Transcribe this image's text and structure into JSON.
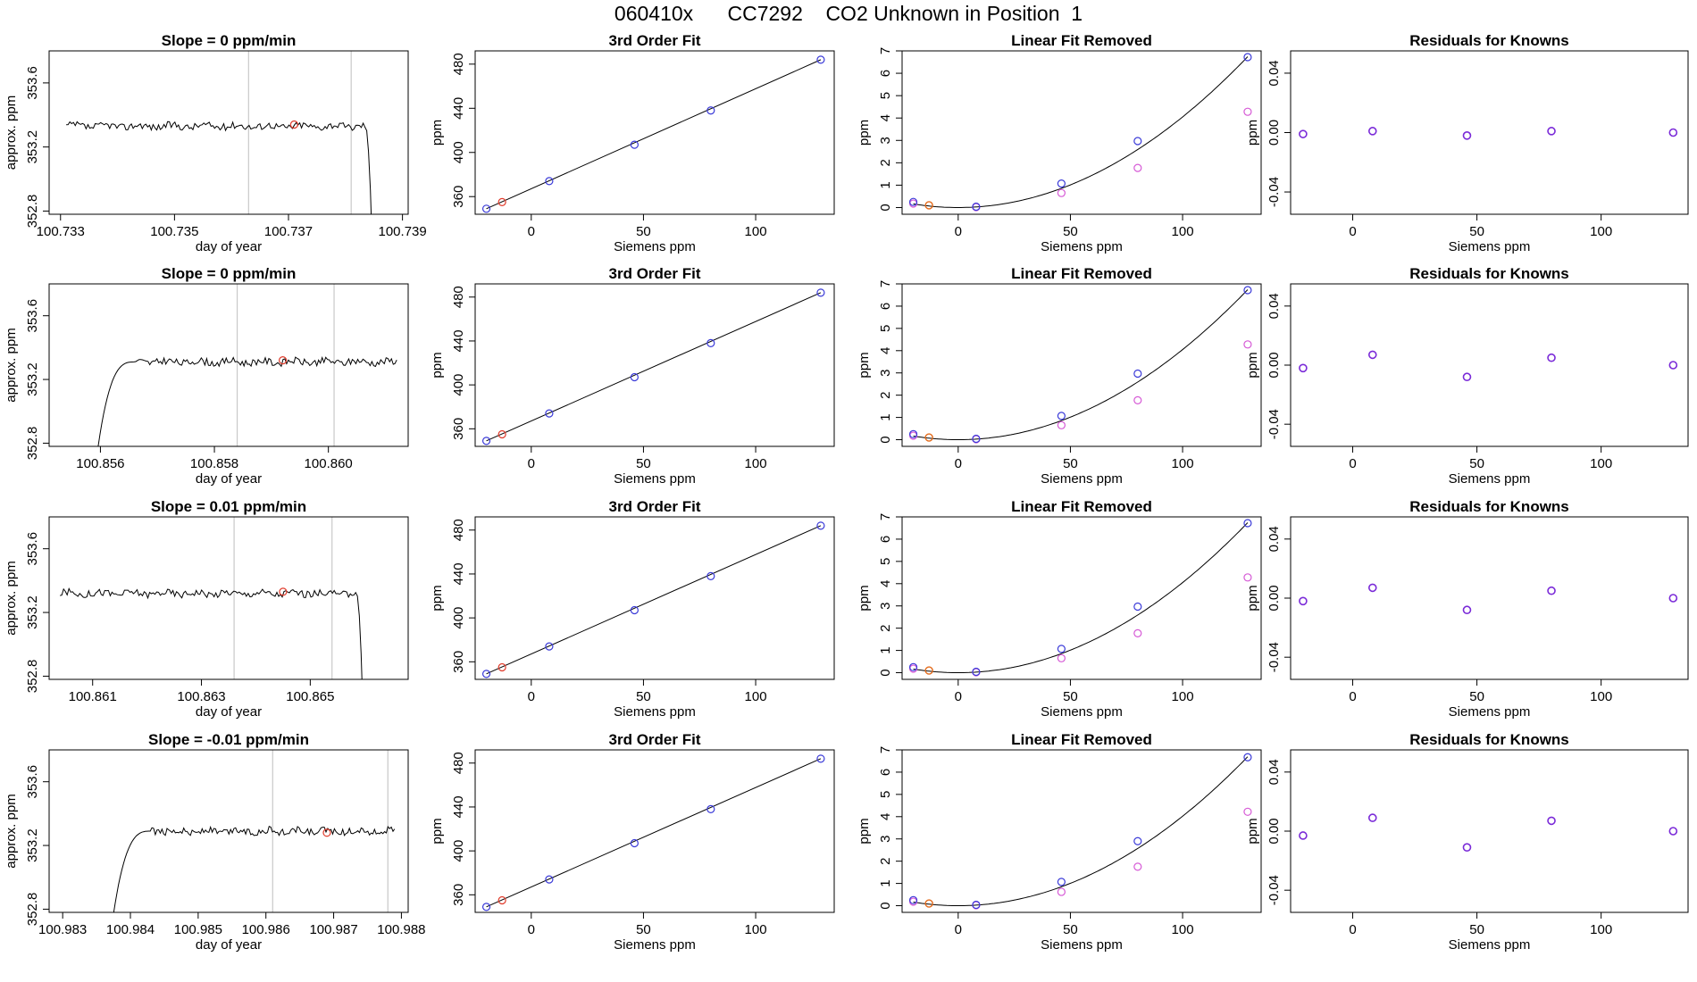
{
  "figure": {
    "title": "060410x      CC7292    CO2 Unknown in Position  1"
  },
  "colors": {
    "frame": "#000000",
    "trace": "#000000",
    "fit_line": "#000000",
    "vline": "#c8c8c8",
    "unknown": "#e03a2a",
    "known": "#3a3ad8",
    "removed": "#d65ad6",
    "residual": "#7a2ad8",
    "orange": "#e36a1a"
  },
  "chart_data": [
    {
      "type": "line",
      "row": 1,
      "col": 1,
      "panel": "timeseries",
      "title": "Slope =  0  ppm/min",
      "xlabel": "day of year",
      "ylabel": "approx. ppm",
      "xlim": [
        100.7328,
        100.7391
      ],
      "ylim": [
        352.78,
        353.8
      ],
      "xticks": [
        100.733,
        100.735,
        100.737,
        100.739
      ],
      "xtick_labels": [
        "100.733",
        "100.735",
        "100.737",
        "100.739"
      ],
      "yticks": [
        352.8,
        353.2,
        353.6
      ],
      "ytick_labels": [
        "352.8",
        "353.2",
        "353.6"
      ],
      "trace_start": 100.7331,
      "trace_end": 100.7385,
      "trace_level": 353.33,
      "rise_end": null,
      "drop_start": 100.73835,
      "vlines": [
        100.7363,
        100.7381
      ],
      "marker": {
        "x": 100.7371,
        "y": 353.34
      }
    },
    {
      "type": "line",
      "row": 1,
      "col": 2,
      "panel": "fit",
      "title": "3rd Order Fit",
      "xlabel": "Siemens ppm",
      "ylabel": "ppm",
      "xlim": [
        -25,
        135
      ],
      "ylim": [
        344,
        492
      ],
      "xticks": [
        0,
        50,
        100
      ],
      "xtick_labels": [
        "0",
        "50",
        "100"
      ],
      "yticks": [
        360,
        400,
        440,
        480
      ],
      "ytick_labels": [
        "360",
        "400",
        "440",
        "480"
      ],
      "knowns": [
        {
          "x": -20,
          "y": 349
        },
        {
          "x": 8,
          "y": 374
        },
        {
          "x": 46,
          "y": 407
        },
        {
          "x": 80,
          "y": 438
        },
        {
          "x": 129,
          "y": 484
        }
      ],
      "unknown": {
        "x": -13,
        "y": 355
      }
    },
    {
      "type": "scatter",
      "row": 1,
      "col": 3,
      "panel": "linear_removed",
      "title": "Linear Fit Removed",
      "xlabel": "Siemens ppm",
      "ylabel": "ppm",
      "xlim": [
        -25,
        135
      ],
      "ylim": [
        -0.3,
        7.0
      ],
      "xticks": [
        0,
        50,
        100
      ],
      "xtick_labels": [
        "0",
        "50",
        "100"
      ],
      "yticks": [
        0,
        1,
        2,
        3,
        4,
        5,
        6,
        7
      ],
      "ytick_labels": [
        "0",
        "1",
        "2",
        "3",
        "4",
        "5",
        "6",
        "7"
      ],
      "knowns": [
        {
          "x": -20,
          "y": 0.25
        },
        {
          "x": 8,
          "y": 0.04
        },
        {
          "x": 46,
          "y": 1.07
        },
        {
          "x": 80,
          "y": 2.97
        },
        {
          "x": 129,
          "y": 6.72
        }
      ],
      "removed": [
        {
          "x": -20,
          "y": 0.18
        },
        {
          "x": 8,
          "y": 0.02
        },
        {
          "x": 46,
          "y": 0.65
        },
        {
          "x": 80,
          "y": 1.77
        },
        {
          "x": 129,
          "y": 4.28
        }
      ],
      "unknown": {
        "x": -13,
        "y": 0.1
      },
      "curve_coeffs": [
        0.0,
        0.0,
        0.000405,
        0.0
      ]
    },
    {
      "type": "scatter",
      "row": 1,
      "col": 4,
      "panel": "residuals",
      "title": "Residuals for Knowns",
      "xlabel": "Siemens ppm",
      "ylabel": "ppm",
      "xlim": [
        -25,
        135
      ],
      "ylim": [
        -0.055,
        0.055
      ],
      "xticks": [
        0,
        50,
        100
      ],
      "xtick_labels": [
        "0",
        "50",
        "100"
      ],
      "yticks": [
        -0.04,
        0.0,
        0.04
      ],
      "ytick_labels": [
        "-0.04",
        "0.00",
        "0.04"
      ],
      "residuals": [
        {
          "x": -20,
          "y": -0.001
        },
        {
          "x": 8,
          "y": 0.001
        },
        {
          "x": 46,
          "y": -0.002
        },
        {
          "x": 80,
          "y": 0.001
        },
        {
          "x": 129,
          "y": 0.0
        }
      ]
    },
    {
      "type": "line",
      "row": 2,
      "col": 1,
      "panel": "timeseries",
      "title": "Slope =  0  ppm/min",
      "xlabel": "day of year",
      "ylabel": "approx. ppm",
      "xlim": [
        100.8551,
        100.8614
      ],
      "ylim": [
        352.78,
        353.8
      ],
      "xticks": [
        100.856,
        100.858,
        100.86
      ],
      "xtick_labels": [
        "100.856",
        "100.858",
        "100.860"
      ],
      "yticks": [
        352.8,
        353.2,
        353.6
      ],
      "ytick_labels": [
        "352.8",
        "353.2",
        "353.6"
      ],
      "trace_start": 100.8559,
      "trace_end": 100.8612,
      "trace_level": 353.31,
      "rise_end": 100.8566,
      "drop_start": null,
      "vlines": [
        100.8584,
        100.8601
      ],
      "marker": {
        "x": 100.8592,
        "y": 353.32
      }
    },
    {
      "type": "line",
      "row": 2,
      "col": 2,
      "panel": "fit",
      "title": "3rd Order Fit",
      "xlabel": "Siemens ppm",
      "ylabel": "ppm",
      "xlim": [
        -25,
        135
      ],
      "ylim": [
        344,
        492
      ],
      "xticks": [
        0,
        50,
        100
      ],
      "xtick_labels": [
        "0",
        "50",
        "100"
      ],
      "yticks": [
        360,
        400,
        440,
        480
      ],
      "ytick_labels": [
        "360",
        "400",
        "440",
        "480"
      ],
      "knowns": [
        {
          "x": -20,
          "y": 349
        },
        {
          "x": 8,
          "y": 374
        },
        {
          "x": 46,
          "y": 407
        },
        {
          "x": 80,
          "y": 438
        },
        {
          "x": 129,
          "y": 484
        }
      ],
      "unknown": {
        "x": -13,
        "y": 355
      }
    },
    {
      "type": "scatter",
      "row": 2,
      "col": 3,
      "panel": "linear_removed",
      "title": "Linear Fit Removed",
      "xlabel": "Siemens ppm",
      "ylabel": "ppm",
      "xlim": [
        -25,
        135
      ],
      "ylim": [
        -0.3,
        7.0
      ],
      "xticks": [
        0,
        50,
        100
      ],
      "xtick_labels": [
        "0",
        "50",
        "100"
      ],
      "yticks": [
        0,
        1,
        2,
        3,
        4,
        5,
        6,
        7
      ],
      "ytick_labels": [
        "0",
        "1",
        "2",
        "3",
        "4",
        "5",
        "6",
        "7"
      ],
      "knowns": [
        {
          "x": -20,
          "y": 0.25
        },
        {
          "x": 8,
          "y": 0.04
        },
        {
          "x": 46,
          "y": 1.07
        },
        {
          "x": 80,
          "y": 2.97
        },
        {
          "x": 129,
          "y": 6.72
        }
      ],
      "removed": [
        {
          "x": -20,
          "y": 0.18
        },
        {
          "x": 8,
          "y": 0.02
        },
        {
          "x": 46,
          "y": 0.65
        },
        {
          "x": 80,
          "y": 1.77
        },
        {
          "x": 129,
          "y": 4.28
        }
      ],
      "unknown": {
        "x": -13,
        "y": 0.1
      },
      "curve_coeffs": [
        0.0,
        0.0,
        0.000405,
        0.0
      ]
    },
    {
      "type": "scatter",
      "row": 2,
      "col": 4,
      "panel": "residuals",
      "title": "Residuals for Knowns",
      "xlabel": "Siemens ppm",
      "ylabel": "ppm",
      "xlim": [
        -25,
        135
      ],
      "ylim": [
        -0.055,
        0.055
      ],
      "xticks": [
        0,
        50,
        100
      ],
      "xtick_labels": [
        "0",
        "50",
        "100"
      ],
      "yticks": [
        -0.04,
        0.0,
        0.04
      ],
      "ytick_labels": [
        "-0.04",
        "0.00",
        "0.04"
      ],
      "residuals": [
        {
          "x": -20,
          "y": -0.002
        },
        {
          "x": 8,
          "y": 0.007
        },
        {
          "x": 46,
          "y": -0.008
        },
        {
          "x": 80,
          "y": 0.005
        },
        {
          "x": 129,
          "y": 0.0
        }
      ]
    },
    {
      "type": "line",
      "row": 3,
      "col": 1,
      "panel": "timeseries",
      "title": "Slope =  0.01  ppm/min",
      "xlabel": "day of year",
      "ylabel": "approx. ppm",
      "xlim": [
        100.8602,
        100.8668
      ],
      "ylim": [
        352.78,
        353.8
      ],
      "xticks": [
        100.861,
        100.863,
        100.865
      ],
      "xtick_labels": [
        "100.861",
        "100.863",
        "100.865"
      ],
      "yticks": [
        352.8,
        353.2,
        353.6
      ],
      "ytick_labels": [
        "352.8",
        "353.2",
        "353.6"
      ],
      "trace_start": 100.8604,
      "trace_end": 100.866,
      "trace_level": 353.32,
      "rise_end": null,
      "drop_start": 100.86585,
      "vlines": [
        100.8636,
        100.8654
      ],
      "marker": {
        "x": 100.8645,
        "y": 353.33
      }
    },
    {
      "type": "line",
      "row": 3,
      "col": 2,
      "panel": "fit",
      "title": "3rd Order Fit",
      "xlabel": "Siemens ppm",
      "ylabel": "ppm",
      "xlim": [
        -25,
        135
      ],
      "ylim": [
        344,
        492
      ],
      "xticks": [
        0,
        50,
        100
      ],
      "xtick_labels": [
        "0",
        "50",
        "100"
      ],
      "yticks": [
        360,
        400,
        440,
        480
      ],
      "ytick_labels": [
        "360",
        "400",
        "440",
        "480"
      ],
      "knowns": [
        {
          "x": -20,
          "y": 349
        },
        {
          "x": 8,
          "y": 374
        },
        {
          "x": 46,
          "y": 407
        },
        {
          "x": 80,
          "y": 438
        },
        {
          "x": 129,
          "y": 484
        }
      ],
      "unknown": {
        "x": -13,
        "y": 355
      }
    },
    {
      "type": "scatter",
      "row": 3,
      "col": 3,
      "panel": "linear_removed",
      "title": "Linear Fit Removed",
      "xlabel": "Siemens ppm",
      "ylabel": "ppm",
      "xlim": [
        -25,
        135
      ],
      "ylim": [
        -0.3,
        7.0
      ],
      "xticks": [
        0,
        50,
        100
      ],
      "xtick_labels": [
        "0",
        "50",
        "100"
      ],
      "yticks": [
        0,
        1,
        2,
        3,
        4,
        5,
        6,
        7
      ],
      "ytick_labels": [
        "0",
        "1",
        "2",
        "3",
        "4",
        "5",
        "6",
        "7"
      ],
      "knowns": [
        {
          "x": -20,
          "y": 0.25
        },
        {
          "x": 8,
          "y": 0.04
        },
        {
          "x": 46,
          "y": 1.07
        },
        {
          "x": 80,
          "y": 2.97
        },
        {
          "x": 129,
          "y": 6.72
        }
      ],
      "removed": [
        {
          "x": -20,
          "y": 0.18
        },
        {
          "x": 8,
          "y": 0.02
        },
        {
          "x": 46,
          "y": 0.65
        },
        {
          "x": 80,
          "y": 1.77
        },
        {
          "x": 129,
          "y": 4.28
        }
      ],
      "unknown": {
        "x": -13,
        "y": 0.1
      },
      "curve_coeffs": [
        0.0,
        0.0,
        0.000405,
        0.0
      ]
    },
    {
      "type": "scatter",
      "row": 3,
      "col": 4,
      "panel": "residuals",
      "title": "Residuals for Knowns",
      "xlabel": "Siemens ppm",
      "ylabel": "ppm",
      "xlim": [
        -25,
        135
      ],
      "ylim": [
        -0.055,
        0.055
      ],
      "xticks": [
        0,
        50,
        100
      ],
      "xtick_labels": [
        "0",
        "50",
        "100"
      ],
      "yticks": [
        -0.04,
        0.0,
        0.04
      ],
      "ytick_labels": [
        "-0.04",
        "0.00",
        "0.04"
      ],
      "residuals": [
        {
          "x": -20,
          "y": -0.002
        },
        {
          "x": 8,
          "y": 0.007
        },
        {
          "x": 46,
          "y": -0.008
        },
        {
          "x": 80,
          "y": 0.005
        },
        {
          "x": 129,
          "y": 0.0
        }
      ]
    },
    {
      "type": "line",
      "row": 4,
      "col": 1,
      "panel": "timeseries",
      "title": "Slope =  -0.01  ppm/min",
      "xlabel": "day of year",
      "ylabel": "approx. ppm",
      "xlim": [
        100.9828,
        100.9881
      ],
      "ylim": [
        352.78,
        353.8
      ],
      "xticks": [
        100.983,
        100.984,
        100.985,
        100.986,
        100.987,
        100.988
      ],
      "xtick_labels": [
        "100.983",
        "100.984",
        "100.985",
        "100.986",
        "100.987",
        "100.988"
      ],
      "yticks": [
        352.8,
        353.2,
        353.6
      ],
      "ytick_labels": [
        "352.8",
        "353.2",
        "353.6"
      ],
      "trace_start": 100.9837,
      "trace_end": 100.9879,
      "trace_level": 353.29,
      "rise_end": 100.9843,
      "drop_start": null,
      "vlines": [
        100.9861,
        100.9878
      ],
      "marker": {
        "x": 100.9869,
        "y": 353.28
      }
    },
    {
      "type": "line",
      "row": 4,
      "col": 2,
      "panel": "fit",
      "title": "3rd Order Fit",
      "xlabel": "Siemens ppm",
      "ylabel": "ppm",
      "xlim": [
        -25,
        135
      ],
      "ylim": [
        344,
        492
      ],
      "xticks": [
        0,
        50,
        100
      ],
      "xtick_labels": [
        "0",
        "50",
        "100"
      ],
      "yticks": [
        360,
        400,
        440,
        480
      ],
      "ytick_labels": [
        "360",
        "400",
        "440",
        "480"
      ],
      "knowns": [
        {
          "x": -20,
          "y": 349
        },
        {
          "x": 8,
          "y": 374
        },
        {
          "x": 46,
          "y": 407
        },
        {
          "x": 80,
          "y": 438
        },
        {
          "x": 129,
          "y": 484
        }
      ],
      "unknown": {
        "x": -13,
        "y": 355
      }
    },
    {
      "type": "scatter",
      "row": 4,
      "col": 3,
      "panel": "linear_removed",
      "title": "Linear Fit Removed",
      "xlabel": "Siemens ppm",
      "ylabel": "ppm",
      "xlim": [
        -25,
        135
      ],
      "ylim": [
        -0.3,
        7.0
      ],
      "xticks": [
        0,
        50,
        100
      ],
      "xtick_labels": [
        "0",
        "50",
        "100"
      ],
      "yticks": [
        0,
        1,
        2,
        3,
        4,
        5,
        6,
        7
      ],
      "ytick_labels": [
        "0",
        "1",
        "2",
        "3",
        "4",
        "5",
        "6",
        "7"
      ],
      "knowns": [
        {
          "x": -20,
          "y": 0.25
        },
        {
          "x": 8,
          "y": 0.04
        },
        {
          "x": 46,
          "y": 1.07
        },
        {
          "x": 80,
          "y": 2.9
        },
        {
          "x": 129,
          "y": 6.67
        }
      ],
      "removed": [
        {
          "x": -20,
          "y": 0.18
        },
        {
          "x": 8,
          "y": 0.02
        },
        {
          "x": 46,
          "y": 0.62
        },
        {
          "x": 80,
          "y": 1.75
        },
        {
          "x": 129,
          "y": 4.22
        }
      ],
      "unknown": {
        "x": -13,
        "y": 0.1
      },
      "curve_coeffs": [
        0.0,
        0.0,
        0.000402,
        0.0
      ]
    },
    {
      "type": "scatter",
      "row": 4,
      "col": 4,
      "panel": "residuals",
      "title": "Residuals for Knowns",
      "xlabel": "Siemens ppm",
      "ylabel": "ppm",
      "xlim": [
        -25,
        135
      ],
      "ylim": [
        -0.055,
        0.055
      ],
      "xticks": [
        0,
        50,
        100
      ],
      "xtick_labels": [
        "0",
        "50",
        "100"
      ],
      "yticks": [
        -0.04,
        0.0,
        0.04
      ],
      "ytick_labels": [
        "-0.04",
        "0.00",
        "0.04"
      ],
      "residuals": [
        {
          "x": -20,
          "y": -0.003
        },
        {
          "x": 8,
          "y": 0.009
        },
        {
          "x": 46,
          "y": -0.011
        },
        {
          "x": 80,
          "y": 0.007
        },
        {
          "x": 129,
          "y": 0.0
        }
      ]
    }
  ]
}
